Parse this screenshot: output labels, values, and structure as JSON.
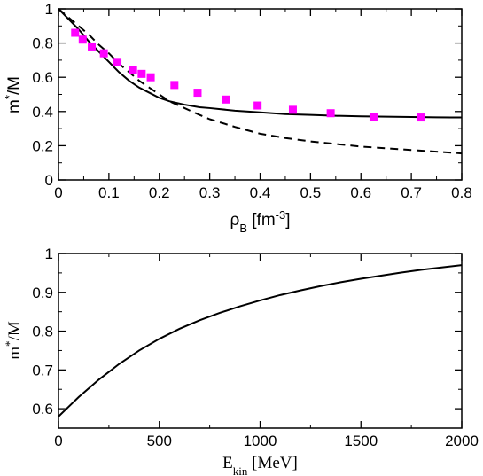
{
  "chart_data": [
    {
      "type": "line",
      "xlim": [
        0,
        0.8
      ],
      "ylim": [
        0,
        1
      ],
      "xticks": [
        "0",
        "0.1",
        "0.2",
        "0.3",
        "0.4",
        "0.5",
        "0.6",
        "0.7",
        "0.8"
      ],
      "yticks": [
        "0",
        "0.2",
        "0.4",
        "0.6",
        "0.8",
        "1"
      ],
      "xlabel": {
        "base": "ρ",
        "sub": "B",
        "mid": " [fm",
        "sup": "-3",
        "end": "]"
      },
      "ylabel": {
        "base": "m",
        "sup": "*",
        "end": "/M"
      },
      "grid": false,
      "series": [
        {
          "style": "solid",
          "color": "#000000",
          "x": [
            0,
            0.02,
            0.04,
            0.06,
            0.08,
            0.1,
            0.12,
            0.14,
            0.16,
            0.18,
            0.2,
            0.22,
            0.25,
            0.28,
            0.3,
            0.35,
            0.4,
            0.45,
            0.5,
            0.55,
            0.6,
            0.65,
            0.7,
            0.75,
            0.8
          ],
          "y": [
            1.0,
            0.94,
            0.88,
            0.81,
            0.75,
            0.69,
            0.63,
            0.58,
            0.54,
            0.51,
            0.48,
            0.46,
            0.44,
            0.425,
            0.42,
            0.405,
            0.395,
            0.385,
            0.38,
            0.375,
            0.372,
            0.37,
            0.368,
            0.366,
            0.365
          ]
        },
        {
          "style": "dashed",
          "color": "#000000",
          "x": [
            0,
            0.02,
            0.04,
            0.06,
            0.08,
            0.1,
            0.12,
            0.14,
            0.16,
            0.18,
            0.2,
            0.22,
            0.25,
            0.28,
            0.3,
            0.35,
            0.4,
            0.45,
            0.5,
            0.55,
            0.6,
            0.65,
            0.7,
            0.75,
            0.8
          ],
          "y": [
            1.0,
            0.95,
            0.9,
            0.85,
            0.79,
            0.74,
            0.68,
            0.63,
            0.58,
            0.54,
            0.5,
            0.46,
            0.42,
            0.38,
            0.355,
            0.31,
            0.27,
            0.245,
            0.225,
            0.21,
            0.195,
            0.185,
            0.175,
            0.165,
            0.155
          ]
        },
        {
          "style": "markers",
          "marker": "square",
          "color": "#ff00ff",
          "x": [
            0.033,
            0.048,
            0.066,
            0.09,
            0.117,
            0.148,
            0.165,
            0.183,
            0.23,
            0.276,
            0.332,
            0.395,
            0.465,
            0.54,
            0.625,
            0.72
          ],
          "y": [
            0.86,
            0.82,
            0.78,
            0.74,
            0.69,
            0.645,
            0.62,
            0.6,
            0.555,
            0.51,
            0.47,
            0.435,
            0.41,
            0.39,
            0.37,
            0.365
          ]
        }
      ]
    },
    {
      "type": "line",
      "xlim": [
        0,
        2000
      ],
      "ylim": [
        0.55,
        1.0
      ],
      "xticks": [
        "0",
        "500",
        "1000",
        "1500",
        "2000"
      ],
      "yticks": [
        "0.6",
        "0.7",
        "0.8",
        "0.9",
        "1"
      ],
      "xlabel": {
        "base": "E",
        "sub": "kin",
        "end": " [MeV]"
      },
      "ylabel": {
        "base": "m",
        "sup": "*",
        "end": "/M"
      },
      "grid": false,
      "series": [
        {
          "style": "solid",
          "color": "#000000",
          "x": [
            0,
            50,
            100,
            200,
            300,
            400,
            500,
            600,
            700,
            800,
            900,
            1000,
            1100,
            1200,
            1300,
            1400,
            1500,
            1600,
            1700,
            1800,
            1900,
            2000
          ],
          "y": [
            0.58,
            0.605,
            0.63,
            0.675,
            0.715,
            0.75,
            0.78,
            0.806,
            0.828,
            0.847,
            0.864,
            0.879,
            0.893,
            0.905,
            0.916,
            0.926,
            0.935,
            0.943,
            0.951,
            0.958,
            0.964,
            0.97
          ]
        }
      ]
    }
  ]
}
